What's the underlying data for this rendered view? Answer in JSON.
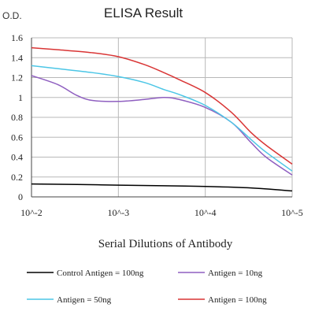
{
  "chart_data": {
    "type": "line",
    "title": "ELISA Result",
    "ylabel": "O.D.",
    "xlabel": "Serial Dilutions of Antibody",
    "x_ticks": [
      "10^-2",
      "10^-3",
      "10^-4",
      "10^-5"
    ],
    "x_scale": "log",
    "y_ticks": [
      "0",
      "0.2",
      "0.4",
      "0.6",
      "0.8",
      "1",
      "1.2",
      "1.4",
      "1.6"
    ],
    "ylim": [
      0,
      1.6
    ],
    "grid": true,
    "legend_position": "bottom",
    "series": [
      {
        "name": "Control Antigen = 100ng",
        "color": "#000000",
        "x": [
          0.01,
          0.003,
          0.001,
          0.0003,
          0.0001,
          3e-05,
          1e-05
        ],
        "y": [
          0.13,
          0.125,
          0.118,
          0.112,
          0.105,
          0.09,
          0.06
        ]
      },
      {
        "name": "Antigen = 10ng",
        "color": "#8f5fc0",
        "x": [
          0.01,
          0.005,
          0.003,
          0.002,
          0.001,
          0.0005,
          0.0003,
          0.0002,
          0.0001,
          5e-05,
          3e-05,
          2e-05,
          1e-05
        ],
        "y": [
          1.22,
          1.13,
          1.02,
          0.97,
          0.96,
          0.98,
          1.0,
          0.98,
          0.9,
          0.75,
          0.55,
          0.4,
          0.22
        ]
      },
      {
        "name": "Antigen = 50ng",
        "color": "#4cc6e6",
        "x": [
          0.01,
          0.005,
          0.002,
          0.001,
          0.0005,
          0.0003,
          0.0002,
          0.0001,
          5e-05,
          3e-05,
          2e-05,
          1e-05
        ],
        "y": [
          1.32,
          1.29,
          1.25,
          1.21,
          1.15,
          1.08,
          1.03,
          0.92,
          0.75,
          0.58,
          0.45,
          0.26
        ]
      },
      {
        "name": "Antigen = 100ng",
        "color": "#d93535",
        "x": [
          0.01,
          0.005,
          0.002,
          0.001,
          0.0005,
          0.0003,
          0.0002,
          0.0001,
          5e-05,
          3e-05,
          2e-05,
          1e-05
        ],
        "y": [
          1.5,
          1.48,
          1.45,
          1.41,
          1.33,
          1.25,
          1.18,
          1.05,
          0.85,
          0.65,
          0.52,
          0.33
        ]
      }
    ]
  }
}
